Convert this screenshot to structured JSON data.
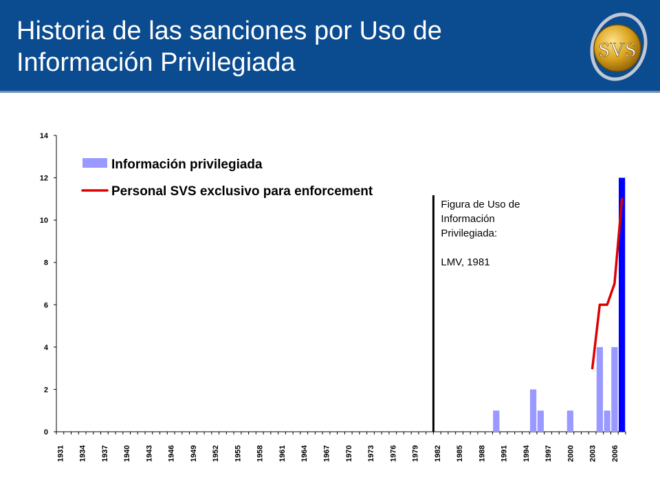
{
  "header": {
    "title_line1": "Historia de las sanciones por Uso de",
    "title_line2": "Información Privilegiada",
    "logo_text": "SVS",
    "background_color": "#0b4b8f"
  },
  "chart_data": {
    "type": "bar",
    "title": "",
    "xlabel": "",
    "ylabel": "",
    "ylim": [
      0,
      14
    ],
    "yticks": [
      0,
      2,
      4,
      6,
      8,
      10,
      12,
      14
    ],
    "x_range": [
      1931,
      2007
    ],
    "x_tick_labels": [
      "1931",
      "1934",
      "1937",
      "1940",
      "1943",
      "1946",
      "1949",
      "1952",
      "1955",
      "1958",
      "1961",
      "1964",
      "1967",
      "1970",
      "1973",
      "1976",
      "1979",
      "1982",
      "1985",
      "1988",
      "1991",
      "1994",
      "1997",
      "2000",
      "2003",
      "2006"
    ],
    "legend_placement": "top-left",
    "grid": false,
    "series": [
      {
        "name": "Información privilegiada",
        "type": "bar",
        "color": "#9999ff",
        "highlight_color": "#0000ff",
        "highlight_year": 2007,
        "x": [
          1990,
          1995,
          1996,
          2000,
          2004,
          2005,
          2006,
          2007
        ],
        "values": [
          1,
          2,
          1,
          1,
          4,
          1,
          4,
          12
        ]
      },
      {
        "name": "Personal SVS exclusivo para enforcement",
        "type": "line",
        "color": "#dd0000",
        "points": [
          [
            2003,
            3
          ],
          [
            2004,
            6
          ],
          [
            2005,
            6
          ],
          [
            2006,
            7
          ],
          [
            2007,
            11
          ]
        ]
      }
    ],
    "annotation": {
      "x": 1981,
      "lines": [
        "Figura de Uso de",
        "Información",
        "Privilegiada:",
        "",
        "LMV, 1981"
      ]
    }
  }
}
